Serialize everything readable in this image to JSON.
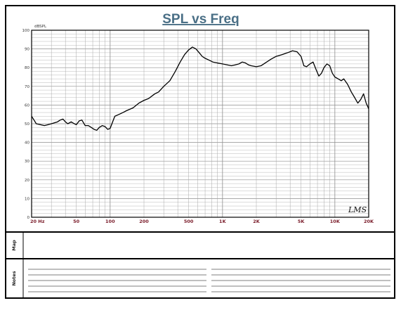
{
  "chart_data": {
    "type": "line",
    "title": "SPL vs Freq",
    "ylabel": "dBSPL",
    "xlabel": "",
    "x_scale": "log",
    "xlim": [
      20,
      20000
    ],
    "ylim": [
      0,
      100
    ],
    "grid": true,
    "y_ticks": [
      0,
      10,
      20,
      30,
      40,
      50,
      60,
      70,
      80,
      90,
      100
    ],
    "x_tick_labels": [
      {
        "value": 20,
        "label": "20 Hz"
      },
      {
        "value": 50,
        "label": "50"
      },
      {
        "value": 100,
        "label": "100"
      },
      {
        "value": 200,
        "label": "200"
      },
      {
        "value": 500,
        "label": "500"
      },
      {
        "value": 1000,
        "label": "1K"
      },
      {
        "value": 2000,
        "label": "2K"
      },
      {
        "value": 5000,
        "label": "5K"
      },
      {
        "value": 10000,
        "label": "10K"
      },
      {
        "value": 20000,
        "label": "20K"
      }
    ],
    "series": [
      {
        "color": "#000000",
        "x": [
          20,
          21,
          22,
          24,
          26,
          28,
          30,
          32,
          34,
          36,
          38,
          40,
          42,
          45,
          48,
          50,
          53,
          56,
          60,
          64,
          68,
          72,
          76,
          80,
          85,
          90,
          95,
          100,
          110,
          120,
          130,
          140,
          160,
          180,
          200,
          220,
          250,
          270,
          300,
          340,
          380,
          420,
          460,
          500,
          540,
          580,
          620,
          660,
          700,
          760,
          820,
          900,
          1000,
          1100,
          1200,
          1300,
          1400,
          1500,
          1600,
          1700,
          1800,
          2000,
          2200,
          2400,
          2700,
          3000,
          3400,
          3800,
          4200,
          4600,
          5000,
          5300,
          5600,
          6000,
          6400,
          6800,
          7200,
          7600,
          8000,
          8500,
          9000,
          9500,
          10000,
          10700,
          11400,
          12000,
          13000,
          14000,
          15000,
          16000,
          17000,
          18000,
          19000,
          20000
        ],
        "y": [
          54,
          52,
          50,
          49.5,
          49,
          49.5,
          50,
          50.5,
          51,
          52,
          52.5,
          51,
          50,
          51,
          50,
          49.5,
          51.5,
          52,
          49,
          49,
          48,
          47,
          46.5,
          48,
          49,
          48.5,
          47,
          47.5,
          54,
          55,
          56,
          57,
          58.5,
          61,
          62.5,
          63.5,
          66,
          67,
          70,
          73,
          78,
          83,
          87,
          89.5,
          91,
          90,
          88,
          86,
          85,
          84,
          83,
          82.5,
          82,
          81.5,
          81,
          81.5,
          82,
          83,
          82.5,
          81.5,
          81,
          80.5,
          81,
          82.5,
          84.5,
          86,
          87,
          88,
          89,
          88.5,
          86,
          81,
          80.5,
          82,
          83,
          79,
          75.5,
          77,
          80,
          82,
          81,
          77,
          75,
          74,
          73,
          74,
          71,
          67,
          64,
          61,
          63,
          66,
          61,
          58
        ]
      }
    ]
  },
  "panels": {
    "map_label": "Map",
    "notes_label": "Notes"
  },
  "branding": {
    "logo_text": "LMS"
  },
  "colors": {
    "title": "#4a6f86",
    "grid": "#a8a8a8",
    "x_tick": "#7a1c2a",
    "curve": "#000000"
  }
}
